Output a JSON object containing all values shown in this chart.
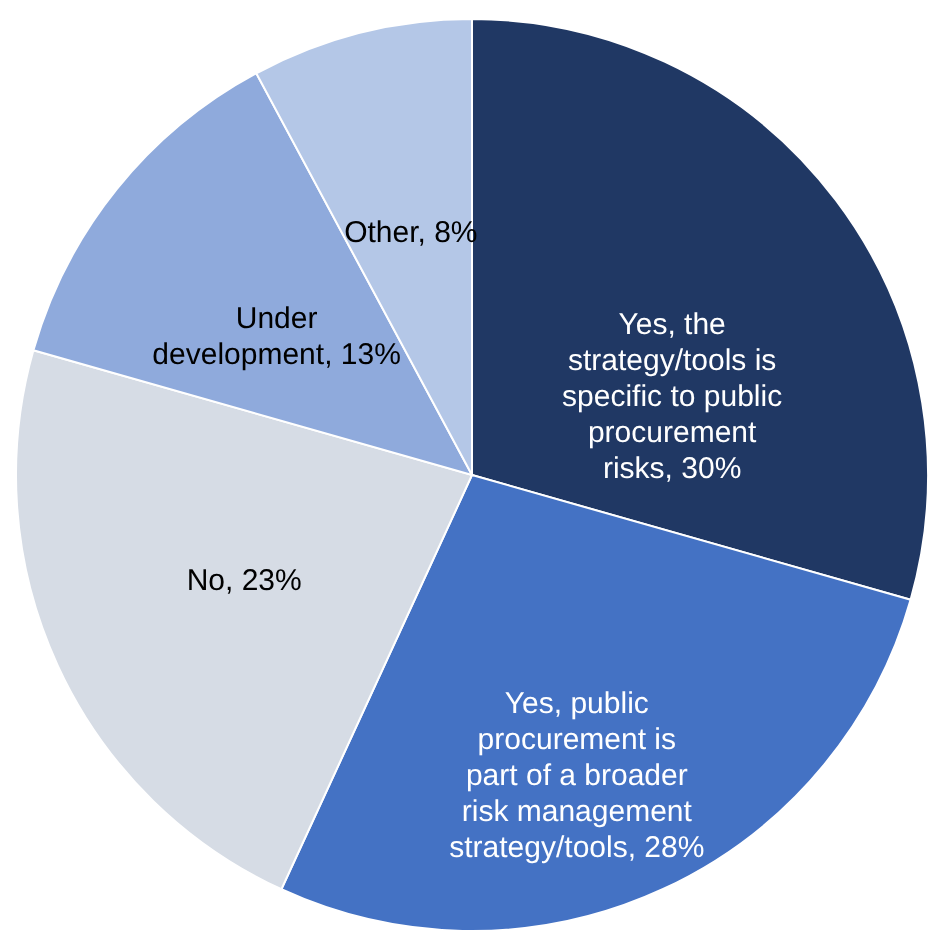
{
  "chart_data": {
    "type": "pie",
    "categories": [
      "Yes, the strategy/tools is specific to public procurement risks",
      "Yes, public procurement is part of a broader risk management strategy/tools",
      "No",
      "Under development",
      "Other"
    ],
    "values": [
      30,
      28,
      23,
      13,
      8
    ],
    "value_labels": [
      "30%",
      "28%",
      "23%",
      "13%",
      "8%"
    ],
    "colors": [
      "#203864",
      "#4472c4",
      "#d6dce5",
      "#8faadc",
      "#b4c7e7"
    ]
  }
}
